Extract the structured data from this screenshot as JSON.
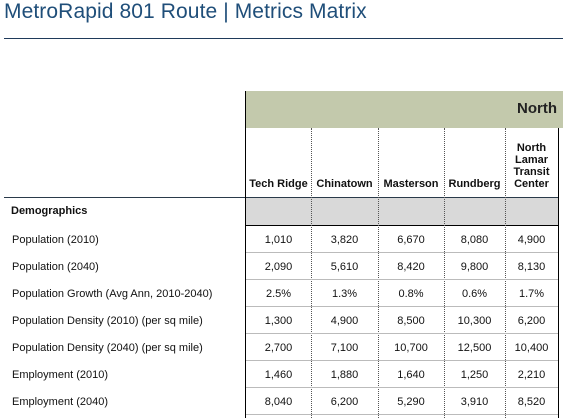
{
  "title": "MetroRapid 801 Route | Metrics Matrix",
  "region": "North",
  "columns": [
    "Tech Ridge",
    "Chinatown",
    "Masterson",
    "Rundberg",
    "North Lamar Transit Center"
  ],
  "section": "Demographics",
  "rows": [
    {
      "label": "Population (2010)",
      "values": [
        "1,010",
        "3,820",
        "6,670",
        "8,080",
        "4,900"
      ]
    },
    {
      "label": "Population (2040)",
      "values": [
        "2,090",
        "5,610",
        "8,420",
        "9,800",
        "8,130"
      ]
    },
    {
      "label": "Population Growth (Avg Ann, 2010-2040)",
      "values": [
        "2.5%",
        "1.3%",
        "0.8%",
        "0.6%",
        "1.7%"
      ]
    },
    {
      "label": "Population Density (2010) (per sq mile)",
      "values": [
        "1,300",
        "4,900",
        "8,500",
        "10,300",
        "6,200"
      ]
    },
    {
      "label": "Population Density (2040) (per sq mile)",
      "values": [
        "2,700",
        "7,100",
        "10,700",
        "12,500",
        "10,400"
      ]
    },
    {
      "label": "Employment (2010)",
      "values": [
        "1,460",
        "1,880",
        "1,640",
        "1,250",
        "2,210"
      ]
    },
    {
      "label": "Employment (2040)",
      "values": [
        "8,040",
        "6,200",
        "5,290",
        "3,910",
        "8,520"
      ]
    }
  ]
}
